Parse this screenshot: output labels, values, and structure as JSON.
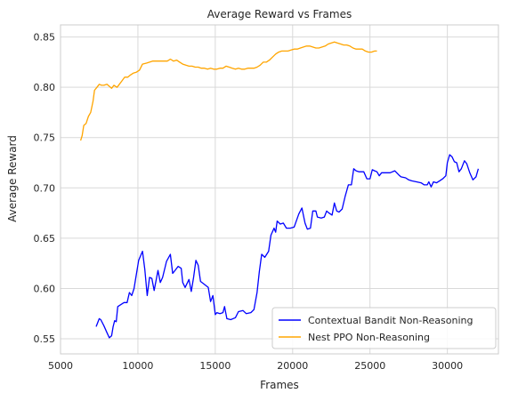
{
  "chart_data": {
    "type": "line",
    "title": "Average Reward vs Frames",
    "xlabel": "Frames",
    "ylabel": "Average Reward",
    "xlim": [
      5000,
      33300
    ],
    "ylim": [
      0.535,
      0.862
    ],
    "xticks": [
      5000,
      10000,
      15000,
      20000,
      25000,
      30000
    ],
    "yticks": [
      0.55,
      0.6,
      0.65,
      0.7,
      0.75,
      0.8,
      0.85
    ],
    "grid": true,
    "legend_position": "lower-right",
    "series": [
      {
        "name": "Contextual Bandit Non-Reasoning",
        "color": "#0000ff",
        "points": [
          [
            7300,
            0.562
          ],
          [
            7500,
            0.57
          ],
          [
            7600,
            0.569
          ],
          [
            7800,
            0.563
          ],
          [
            8000,
            0.556
          ],
          [
            8150,
            0.551
          ],
          [
            8300,
            0.553
          ],
          [
            8400,
            0.562
          ],
          [
            8500,
            0.568
          ],
          [
            8600,
            0.567
          ],
          [
            8700,
            0.582
          ],
          [
            8900,
            0.584
          ],
          [
            9100,
            0.586
          ],
          [
            9300,
            0.586
          ],
          [
            9450,
            0.596
          ],
          [
            9600,
            0.593
          ],
          [
            9750,
            0.6
          ],
          [
            9900,
            0.614
          ],
          [
            10050,
            0.628
          ],
          [
            10300,
            0.637
          ],
          [
            10450,
            0.619
          ],
          [
            10600,
            0.593
          ],
          [
            10750,
            0.611
          ],
          [
            10900,
            0.61
          ],
          [
            11050,
            0.598
          ],
          [
            11300,
            0.618
          ],
          [
            11450,
            0.606
          ],
          [
            11600,
            0.611
          ],
          [
            11850,
            0.627
          ],
          [
            12100,
            0.634
          ],
          [
            12250,
            0.615
          ],
          [
            12400,
            0.618
          ],
          [
            12600,
            0.622
          ],
          [
            12800,
            0.62
          ],
          [
            12900,
            0.606
          ],
          [
            13050,
            0.601
          ],
          [
            13300,
            0.609
          ],
          [
            13450,
            0.597
          ],
          [
            13600,
            0.611
          ],
          [
            13750,
            0.628
          ],
          [
            13900,
            0.623
          ],
          [
            14050,
            0.607
          ],
          [
            14300,
            0.604
          ],
          [
            14550,
            0.601
          ],
          [
            14700,
            0.587
          ],
          [
            14850,
            0.593
          ],
          [
            15000,
            0.574
          ],
          [
            15100,
            0.576
          ],
          [
            15300,
            0.575
          ],
          [
            15500,
            0.576
          ],
          [
            15600,
            0.582
          ],
          [
            15750,
            0.57
          ],
          [
            16000,
            0.569
          ],
          [
            16300,
            0.571
          ],
          [
            16500,
            0.577
          ],
          [
            16800,
            0.578
          ],
          [
            17000,
            0.575
          ],
          [
            17300,
            0.576
          ],
          [
            17500,
            0.579
          ],
          [
            17700,
            0.596
          ],
          [
            17850,
            0.617
          ],
          [
            18000,
            0.634
          ],
          [
            18200,
            0.631
          ],
          [
            18450,
            0.637
          ],
          [
            18600,
            0.653
          ],
          [
            18800,
            0.66
          ],
          [
            18900,
            0.656
          ],
          [
            19000,
            0.667
          ],
          [
            19200,
            0.664
          ],
          [
            19400,
            0.665
          ],
          [
            19600,
            0.66
          ],
          [
            19850,
            0.66
          ],
          [
            20100,
            0.661
          ],
          [
            20400,
            0.674
          ],
          [
            20600,
            0.68
          ],
          [
            20800,
            0.665
          ],
          [
            20950,
            0.659
          ],
          [
            21150,
            0.66
          ],
          [
            21300,
            0.677
          ],
          [
            21500,
            0.677
          ],
          [
            21600,
            0.671
          ],
          [
            21850,
            0.67
          ],
          [
            22050,
            0.671
          ],
          [
            22200,
            0.677
          ],
          [
            22350,
            0.675
          ],
          [
            22550,
            0.673
          ],
          [
            22700,
            0.685
          ],
          [
            22850,
            0.677
          ],
          [
            23000,
            0.676
          ],
          [
            23200,
            0.679
          ],
          [
            23400,
            0.692
          ],
          [
            23600,
            0.703
          ],
          [
            23800,
            0.703
          ],
          [
            23950,
            0.719
          ],
          [
            24100,
            0.717
          ],
          [
            24300,
            0.716
          ],
          [
            24600,
            0.716
          ],
          [
            24800,
            0.709
          ],
          [
            25000,
            0.709
          ],
          [
            25150,
            0.718
          ],
          [
            25300,
            0.717
          ],
          [
            25450,
            0.716
          ],
          [
            25600,
            0.712
          ],
          [
            25750,
            0.715
          ],
          [
            26000,
            0.715
          ],
          [
            26300,
            0.715
          ],
          [
            26600,
            0.717
          ],
          [
            26850,
            0.713
          ],
          [
            27000,
            0.711
          ],
          [
            27300,
            0.71
          ],
          [
            27500,
            0.708
          ],
          [
            27700,
            0.707
          ],
          [
            28000,
            0.706
          ],
          [
            28300,
            0.705
          ],
          [
            28500,
            0.703
          ],
          [
            28700,
            0.703
          ],
          [
            28800,
            0.706
          ],
          [
            28950,
            0.701
          ],
          [
            29100,
            0.706
          ],
          [
            29300,
            0.705
          ],
          [
            29500,
            0.707
          ],
          [
            29700,
            0.709
          ],
          [
            29900,
            0.712
          ],
          [
            30000,
            0.725
          ],
          [
            30150,
            0.733
          ],
          [
            30300,
            0.731
          ],
          [
            30450,
            0.726
          ],
          [
            30600,
            0.725
          ],
          [
            30750,
            0.716
          ],
          [
            30900,
            0.719
          ],
          [
            31100,
            0.727
          ],
          [
            31250,
            0.724
          ],
          [
            31450,
            0.715
          ],
          [
            31650,
            0.708
          ],
          [
            31850,
            0.711
          ],
          [
            32000,
            0.719
          ]
        ]
      },
      {
        "name": "Nest PPO Non-Reasoning",
        "color": "#ffa500",
        "points": [
          [
            6300,
            0.747
          ],
          [
            6400,
            0.752
          ],
          [
            6500,
            0.762
          ],
          [
            6650,
            0.764
          ],
          [
            6800,
            0.771
          ],
          [
            6950,
            0.775
          ],
          [
            7100,
            0.786
          ],
          [
            7200,
            0.797
          ],
          [
            7350,
            0.8
          ],
          [
            7500,
            0.803
          ],
          [
            7650,
            0.802
          ],
          [
            7800,
            0.802
          ],
          [
            8000,
            0.803
          ],
          [
            8150,
            0.801
          ],
          [
            8300,
            0.799
          ],
          [
            8450,
            0.802
          ],
          [
            8650,
            0.8
          ],
          [
            8800,
            0.803
          ],
          [
            8950,
            0.806
          ],
          [
            9150,
            0.81
          ],
          [
            9350,
            0.81
          ],
          [
            9500,
            0.812
          ],
          [
            9700,
            0.814
          ],
          [
            9900,
            0.815
          ],
          [
            10100,
            0.817
          ],
          [
            10300,
            0.823
          ],
          [
            10550,
            0.824
          ],
          [
            10750,
            0.825
          ],
          [
            10950,
            0.826
          ],
          [
            11200,
            0.826
          ],
          [
            11450,
            0.826
          ],
          [
            11700,
            0.826
          ],
          [
            11900,
            0.826
          ],
          [
            12100,
            0.828
          ],
          [
            12300,
            0.826
          ],
          [
            12500,
            0.827
          ],
          [
            12700,
            0.825
          ],
          [
            12900,
            0.823
          ],
          [
            13100,
            0.822
          ],
          [
            13300,
            0.821
          ],
          [
            13500,
            0.821
          ],
          [
            13700,
            0.82
          ],
          [
            13900,
            0.82
          ],
          [
            14100,
            0.819
          ],
          [
            14300,
            0.819
          ],
          [
            14500,
            0.818
          ],
          [
            14700,
            0.819
          ],
          [
            14900,
            0.818
          ],
          [
            15100,
            0.818
          ],
          [
            15300,
            0.819
          ],
          [
            15500,
            0.819
          ],
          [
            15700,
            0.821
          ],
          [
            15900,
            0.82
          ],
          [
            16100,
            0.819
          ],
          [
            16300,
            0.818
          ],
          [
            16500,
            0.819
          ],
          [
            16700,
            0.818
          ],
          [
            16900,
            0.818
          ],
          [
            17100,
            0.819
          ],
          [
            17300,
            0.819
          ],
          [
            17500,
            0.819
          ],
          [
            17700,
            0.82
          ],
          [
            17900,
            0.822
          ],
          [
            18100,
            0.825
          ],
          [
            18300,
            0.825
          ],
          [
            18500,
            0.827
          ],
          [
            18700,
            0.83
          ],
          [
            18900,
            0.833
          ],
          [
            19100,
            0.835
          ],
          [
            19300,
            0.836
          ],
          [
            19500,
            0.836
          ],
          [
            19700,
            0.836
          ],
          [
            19900,
            0.837
          ],
          [
            20100,
            0.838
          ],
          [
            20300,
            0.838
          ],
          [
            20500,
            0.839
          ],
          [
            20700,
            0.84
          ],
          [
            20900,
            0.841
          ],
          [
            21100,
            0.841
          ],
          [
            21300,
            0.84
          ],
          [
            21500,
            0.839
          ],
          [
            21700,
            0.839
          ],
          [
            21900,
            0.84
          ],
          [
            22100,
            0.841
          ],
          [
            22300,
            0.843
          ],
          [
            22500,
            0.844
          ],
          [
            22700,
            0.845
          ],
          [
            22900,
            0.844
          ],
          [
            23100,
            0.843
          ],
          [
            23300,
            0.842
          ],
          [
            23500,
            0.842
          ],
          [
            23700,
            0.841
          ],
          [
            23900,
            0.839
          ],
          [
            24100,
            0.838
          ],
          [
            24300,
            0.838
          ],
          [
            24500,
            0.838
          ],
          [
            24700,
            0.836
          ],
          [
            24900,
            0.835
          ],
          [
            25100,
            0.835
          ],
          [
            25300,
            0.836
          ],
          [
            25450,
            0.836
          ]
        ]
      }
    ]
  }
}
